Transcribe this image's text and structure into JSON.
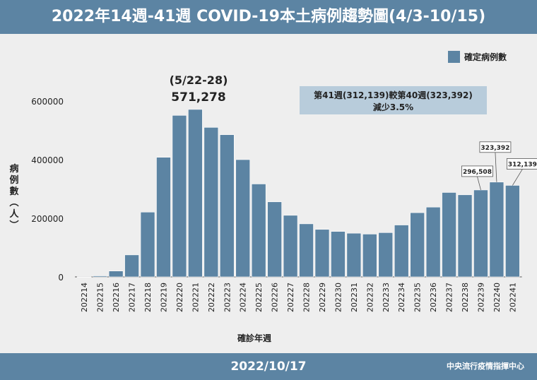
{
  "title": "2022年14週-41週 COVID-19本土病例趨勢圖(4/3-10/15)",
  "footer": {
    "date": "2022/10/17",
    "source": "中央流行疫情指揮中心"
  },
  "colors": {
    "header": "#5c84a3",
    "bar": "#5c84a3",
    "annotation_box": "#b8ccdb",
    "background": "#eeeeee"
  },
  "annotation": {
    "line1": "第41週(312,139)較第40週(323,392)",
    "line2": "減少3.5%"
  },
  "peak": {
    "week": "(5/22-28)",
    "value": "571,278"
  },
  "chart_data": {
    "type": "bar",
    "xlabel": "確診年週",
    "ylabel": "病例數(人)",
    "ylim": [
      0,
      700000
    ],
    "yticks": [
      0,
      200000,
      400000,
      600000
    ],
    "ytick_labels": [
      "0",
      "200000",
      "400000",
      "600000"
    ],
    "grid": false,
    "legend": {
      "label": "確定病例數",
      "position": "top-right"
    },
    "categories": [
      "202214",
      "202215",
      "202216",
      "202217",
      "202218",
      "202219",
      "202220",
      "202221",
      "202222",
      "202223",
      "202224",
      "202225",
      "202226",
      "202227",
      "202228",
      "202229",
      "202230",
      "202231",
      "202232",
      "202233",
      "202234",
      "202235",
      "202236",
      "202237",
      "202238",
      "202239",
      "202240",
      "202241"
    ],
    "values": [
      250,
      3500,
      20000,
      75000,
      221000,
      408000,
      551000,
      571278,
      510000,
      485000,
      400000,
      317000,
      256000,
      210000,
      181000,
      162000,
      155000,
      149000,
      146000,
      151000,
      177000,
      219000,
      238000,
      288000,
      280000,
      296508,
      323392,
      312139
    ],
    "data_labels": [
      {
        "category": "202239",
        "text": "296,508"
      },
      {
        "category": "202240",
        "text": "323,392"
      },
      {
        "category": "202241",
        "text": "312,139"
      }
    ]
  }
}
